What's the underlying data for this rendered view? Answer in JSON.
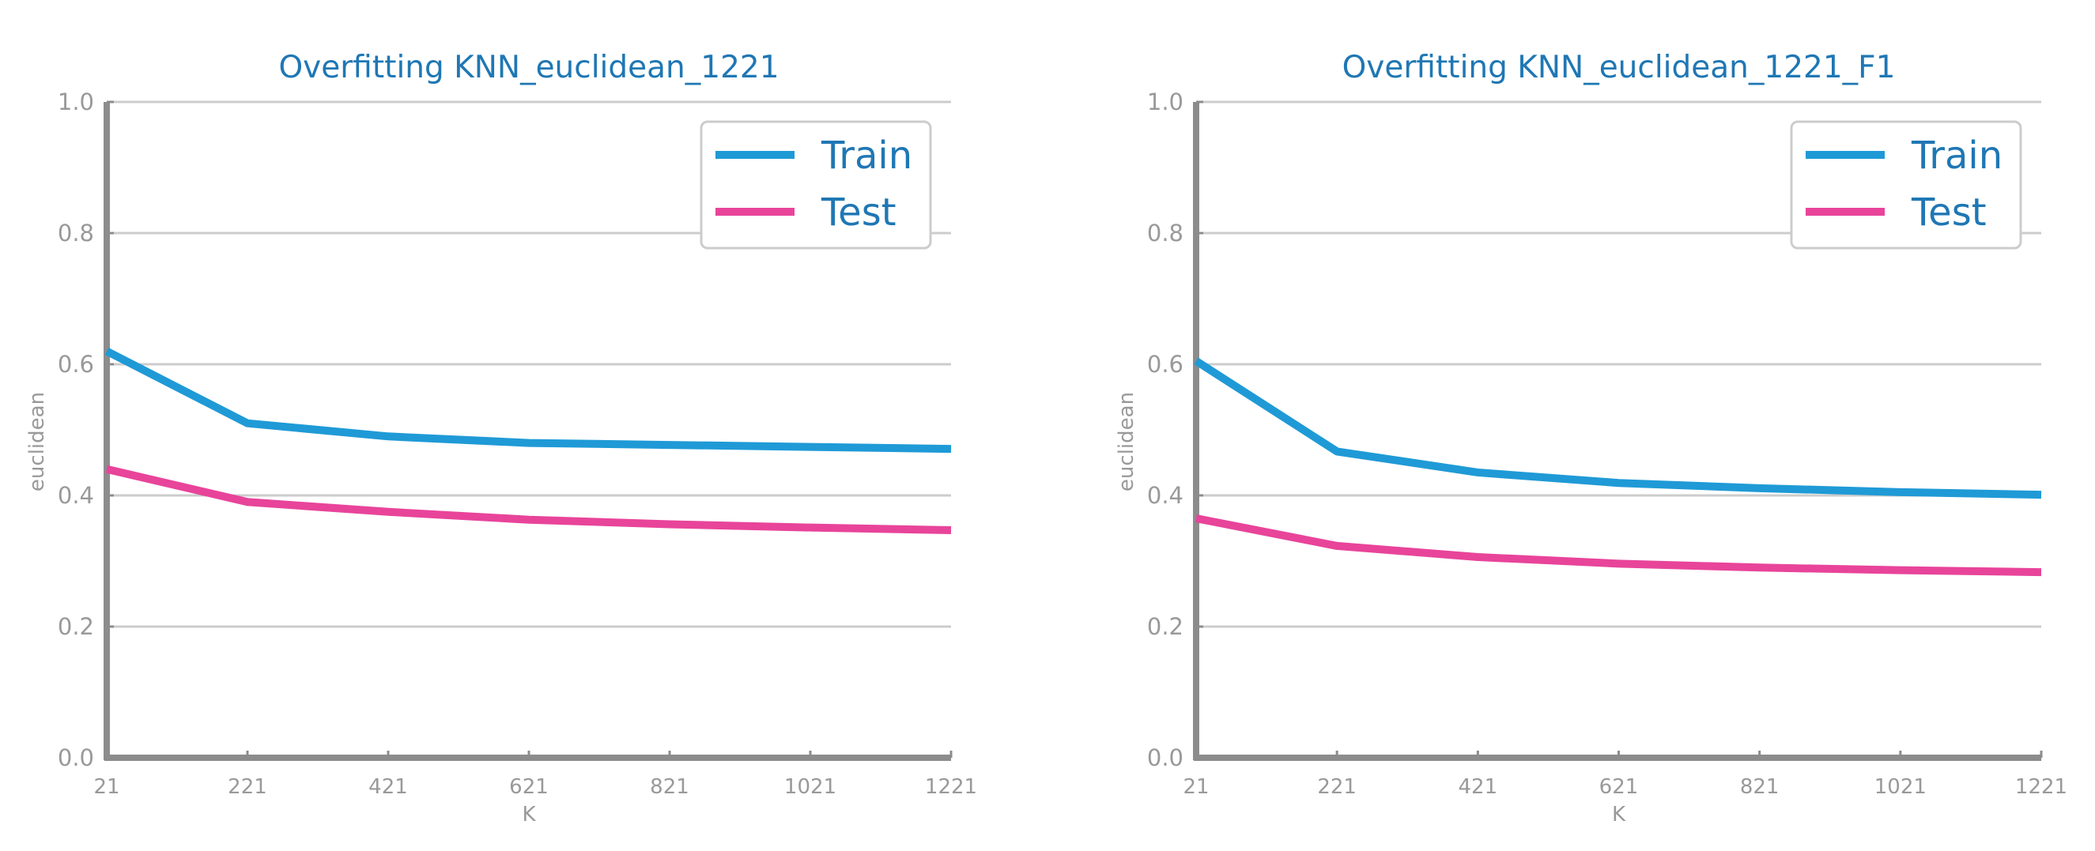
{
  "colors": {
    "title": "#1f77b4",
    "grid": "#cccccc",
    "axis": "#8c8c8c",
    "tick_label": "#999999",
    "legend_text": "#1f77b4",
    "legend_border": "#cccccc",
    "train": "#1f9ad6",
    "test": "#e8449a"
  },
  "chart_data": [
    {
      "type": "line",
      "title": "Overfitting KNN_euclidean_1221",
      "xlabel": "K",
      "ylabel": "euclidean",
      "x": [
        21,
        221,
        421,
        621,
        821,
        1021,
        1221
      ],
      "xticks": [
        "21",
        "221",
        "421",
        "621",
        "821",
        "1021",
        "1221"
      ],
      "yticks": [
        "0.0",
        "0.2",
        "0.4",
        "0.6",
        "0.8",
        "1.0"
      ],
      "xlim": [
        21,
        1221
      ],
      "ylim": [
        0,
        1
      ],
      "grid": "horizontal",
      "legend": "top-right",
      "series": [
        {
          "name": "Train",
          "color": "#1f9ad6",
          "values": [
            0.62,
            0.51,
            0.49,
            0.48,
            0.477,
            0.474,
            0.471
          ]
        },
        {
          "name": "Test",
          "color": "#e8449a",
          "values": [
            0.44,
            0.39,
            0.375,
            0.363,
            0.356,
            0.351,
            0.347
          ]
        }
      ]
    },
    {
      "type": "line",
      "title": "Overfitting KNN_euclidean_1221_F1",
      "xlabel": "K",
      "ylabel": "euclidean",
      "x": [
        21,
        221,
        421,
        621,
        821,
        1021,
        1221
      ],
      "xticks": [
        "21",
        "221",
        "421",
        "621",
        "821",
        "1021",
        "1221"
      ],
      "yticks": [
        "0.0",
        "0.2",
        "0.4",
        "0.6",
        "0.8",
        "1.0"
      ],
      "xlim": [
        21,
        1221
      ],
      "ylim": [
        0,
        1
      ],
      "grid": "horizontal",
      "legend": "top-right",
      "series": [
        {
          "name": "Train",
          "color": "#1f9ad6",
          "values": [
            0.605,
            0.467,
            0.435,
            0.419,
            0.411,
            0.405,
            0.401
          ]
        },
        {
          "name": "Test",
          "color": "#e8449a",
          "values": [
            0.365,
            0.323,
            0.306,
            0.296,
            0.29,
            0.286,
            0.283
          ]
        }
      ]
    }
  ]
}
